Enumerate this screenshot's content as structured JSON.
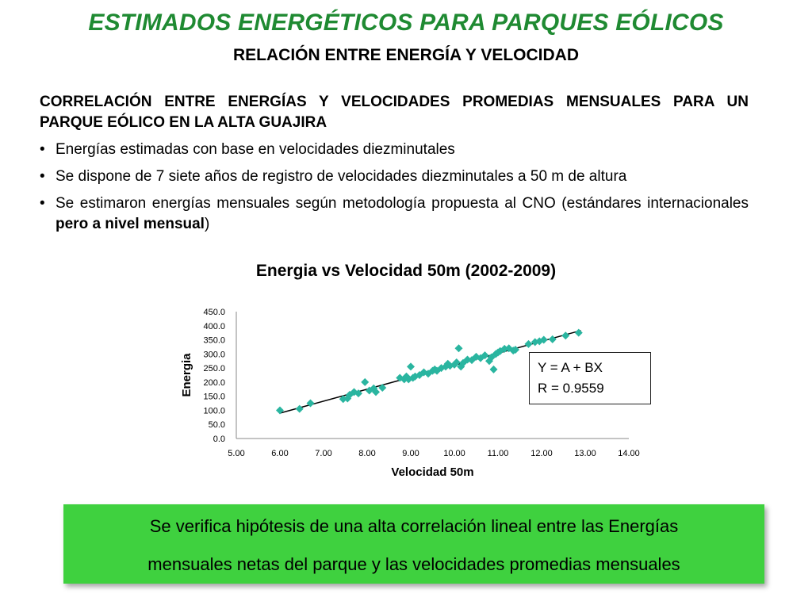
{
  "header": {
    "title": "ESTIMADOS ENERGÉTICOS PARA PARQUES EÓLICOS",
    "subtitle": "RELACIÓN ENTRE ENERGÍA Y VELOCIDAD"
  },
  "content": {
    "heading": "CORRELACIÓN ENTRE ENERGÍAS Y VELOCIDADES PROMEDIAS MENSUALES PARA UN PARQUE EÓLICO EN LA ALTA GUAJIRA",
    "bullet_symbol": "•",
    "bullet1": "Energías estimadas con base en velocidades diezminutales",
    "bullet2": "Se dispone de 7 siete años de registro de velocidades diezminutales a 50 m de altura",
    "bullet3_a": "Se estimaron energías mensuales según metodología propuesta al CNO (estándares internacionales ",
    "bullet3_b": "pero a nivel mensual",
    "bullet3_c": ")"
  },
  "chart_data": {
    "type": "scatter",
    "title": "Energia vs Velocidad 50m (2002-2009)",
    "xlabel": "Velocidad 50m",
    "ylabel": "Energia",
    "xlim": [
      5,
      14
    ],
    "ylim": [
      0,
      450
    ],
    "x_ticks": [
      "5.00",
      "6.00",
      "7.00",
      "8.00",
      "9.00",
      "10.00",
      "11.00",
      "12.00",
      "13.00",
      "14.00"
    ],
    "y_ticks": [
      "0.0",
      "50.0",
      "100.0",
      "150.0",
      "200.0",
      "250.0",
      "300.0",
      "350.0",
      "400.0",
      "450.0"
    ],
    "marker_color": "#2ab5a0",
    "trendline": {
      "x1": 6.0,
      "y1": 90,
      "x2": 12.9,
      "y2": 383
    },
    "points": [
      [
        6.0,
        100
      ],
      [
        6.45,
        105
      ],
      [
        6.7,
        125
      ],
      [
        7.45,
        140
      ],
      [
        7.55,
        142
      ],
      [
        7.6,
        155
      ],
      [
        7.7,
        165
      ],
      [
        7.8,
        160
      ],
      [
        7.95,
        200
      ],
      [
        8.05,
        170
      ],
      [
        8.15,
        178
      ],
      [
        8.2,
        165
      ],
      [
        8.35,
        180
      ],
      [
        8.75,
        215
      ],
      [
        8.85,
        210
      ],
      [
        8.9,
        220
      ],
      [
        8.95,
        210
      ],
      [
        9.0,
        255
      ],
      [
        9.05,
        215
      ],
      [
        9.1,
        220
      ],
      [
        9.2,
        225
      ],
      [
        9.3,
        235
      ],
      [
        9.4,
        230
      ],
      [
        9.5,
        240
      ],
      [
        9.55,
        245
      ],
      [
        9.6,
        240
      ],
      [
        9.7,
        250
      ],
      [
        9.8,
        255
      ],
      [
        9.85,
        265
      ],
      [
        9.9,
        258
      ],
      [
        10.0,
        262
      ],
      [
        10.05,
        270
      ],
      [
        10.1,
        320
      ],
      [
        10.15,
        255
      ],
      [
        10.2,
        268
      ],
      [
        10.3,
        280
      ],
      [
        10.4,
        278
      ],
      [
        10.5,
        290
      ],
      [
        10.6,
        285
      ],
      [
        10.7,
        295
      ],
      [
        10.8,
        275
      ],
      [
        10.85,
        288
      ],
      [
        10.9,
        245
      ],
      [
        10.95,
        300
      ],
      [
        11.0,
        305
      ],
      [
        11.05,
        310
      ],
      [
        11.15,
        318
      ],
      [
        11.25,
        320
      ],
      [
        11.35,
        312
      ],
      [
        11.4,
        315
      ],
      [
        11.7,
        335
      ],
      [
        11.85,
        342
      ],
      [
        11.95,
        345
      ],
      [
        12.05,
        350
      ],
      [
        12.25,
        352
      ],
      [
        12.55,
        365
      ],
      [
        12.85,
        375
      ]
    ]
  },
  "equation_box": {
    "line1": "Y = A + BX",
    "line2": "R = 0.9559"
  },
  "conclusion": {
    "line1": "Se verifica hipótesis de una alta correlación lineal entre las Energías",
    "line2": "mensuales netas del parque y las velocidades promedias mensuales"
  }
}
